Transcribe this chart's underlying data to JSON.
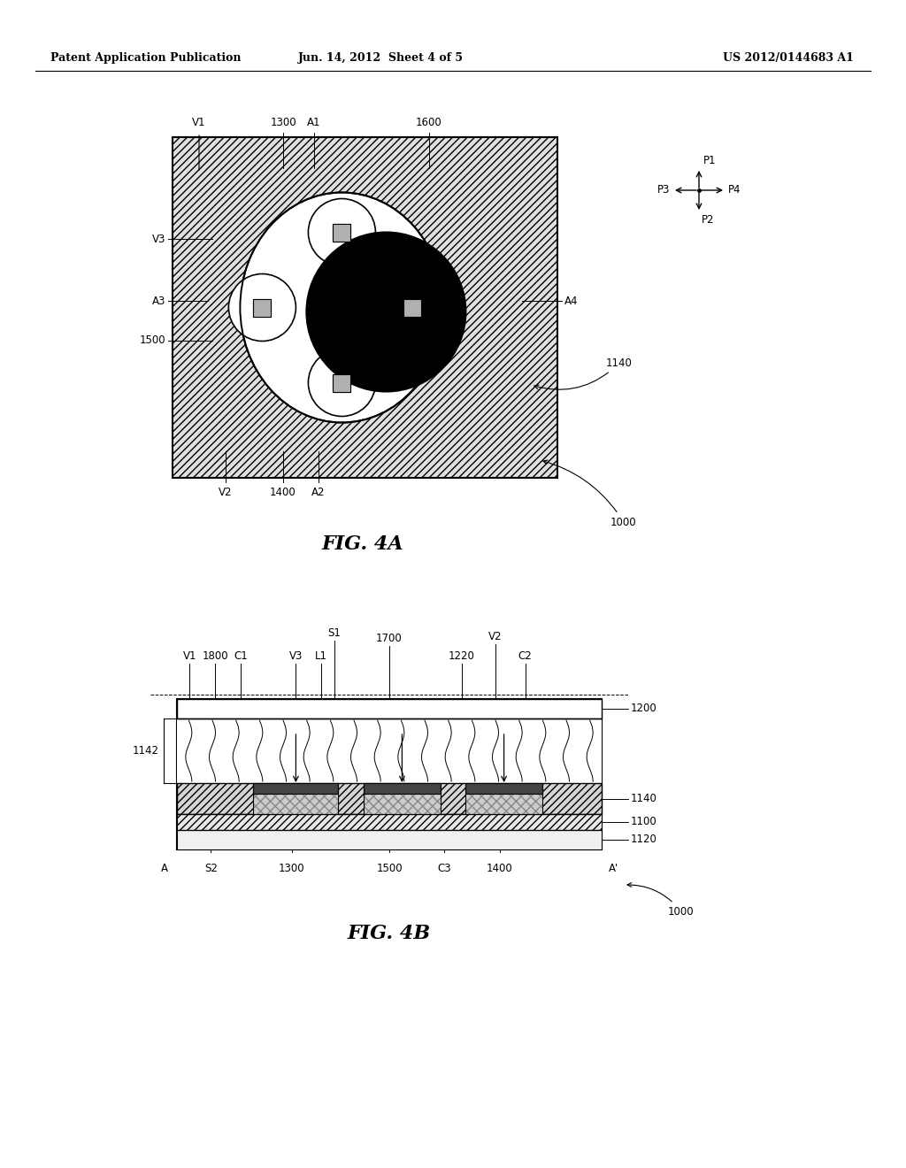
{
  "bg_color": "#ffffff",
  "header_left": "Patent Application Publication",
  "header_center": "Jun. 14, 2012  Sheet 4 of 5",
  "header_right": "US 2012/0144683 A1",
  "fig4a_caption": "FIG. 4A",
  "fig4b_caption": "FIG. 4B",
  "line_color": "#000000",
  "hatch_gray": "#cccccc",
  "dark_gray": "#888888",
  "mid_gray": "#aaaaaa"
}
